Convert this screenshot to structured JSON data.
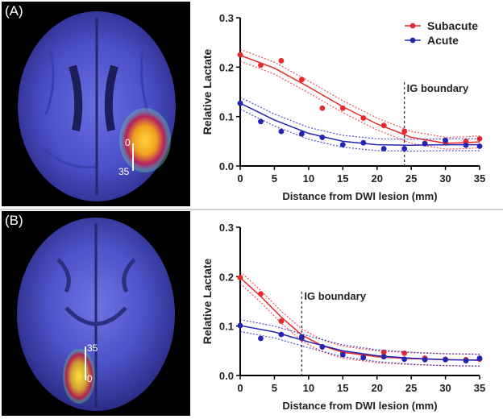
{
  "panels": [
    {
      "label": "(A)",
      "scale_top": "0",
      "scale_bottom": "35"
    },
    {
      "label": "(B)",
      "scale_top": "35",
      "scale_bottom": "0"
    }
  ],
  "colors": {
    "subacute": "#e8282a",
    "acute": "#2424b4",
    "boundary": "#333333"
  },
  "chart_data": [
    {
      "type": "scatter",
      "title": "",
      "xlabel": "Distance from DWI lesion (mm)",
      "ylabel": "Relative Lactate",
      "xlim": [
        0,
        35
      ],
      "ylim": [
        0,
        0.3
      ],
      "xticks": [
        0,
        5,
        10,
        15,
        20,
        25,
        30,
        35
      ],
      "yticks": [
        "0.0",
        "0.1",
        "0.2",
        "0.3"
      ],
      "legend": "top-right",
      "boundary": {
        "x": 24,
        "label": "IG boundary"
      },
      "series": [
        {
          "name": "Subacute",
          "x": [
            0,
            3,
            6,
            9,
            12,
            15,
            18,
            21,
            24,
            27,
            30,
            33,
            35
          ],
          "y": [
            0.225,
            0.204,
            0.213,
            0.175,
            0.117,
            0.117,
            0.097,
            0.082,
            0.07,
            0.046,
            0.047,
            0.05,
            0.055
          ],
          "fit": [
            [
              0,
              0.224
            ],
            [
              5,
              0.198
            ],
            [
              10,
              0.16
            ],
            [
              15,
              0.12
            ],
            [
              20,
              0.085
            ],
            [
              25,
              0.058
            ],
            [
              30,
              0.046
            ],
            [
              33,
              0.047
            ],
            [
              35,
              0.049
            ]
          ]
        },
        {
          "name": "Acute",
          "x": [
            0,
            3,
            6,
            9,
            12,
            15,
            18,
            21,
            24,
            27,
            30,
            33,
            35
          ],
          "y": [
            0.127,
            0.09,
            0.07,
            0.065,
            0.058,
            0.043,
            0.047,
            0.035,
            0.035,
            0.045,
            0.052,
            0.042,
            0.04
          ],
          "fit": [
            [
              0,
              0.127
            ],
            [
              5,
              0.093
            ],
            [
              10,
              0.066
            ],
            [
              15,
              0.05
            ],
            [
              20,
              0.043
            ],
            [
              25,
              0.042
            ],
            [
              30,
              0.043
            ],
            [
              35,
              0.043
            ]
          ]
        }
      ]
    },
    {
      "type": "scatter",
      "title": "",
      "xlabel": "Distance from DWI lesion (mm)",
      "ylabel": "Relative Lactate",
      "xlim": [
        0,
        35
      ],
      "ylim": [
        0,
        0.3
      ],
      "xticks": [
        0,
        5,
        10,
        15,
        20,
        25,
        30,
        35
      ],
      "yticks": [
        "0.0",
        "0.1",
        "0.2",
        "0.3"
      ],
      "legend": "none",
      "boundary": {
        "x": 9,
        "label": "IG boundary"
      },
      "series": [
        {
          "name": "Subacute",
          "x": [
            0,
            3,
            6,
            9,
            12,
            15,
            18,
            21,
            24,
            27,
            30,
            33,
            35
          ],
          "y": [
            0.198,
            0.165,
            0.11,
            0.075,
            0.058,
            0.045,
            0.038,
            0.047,
            0.045,
            0.035,
            0.033,
            0.032,
            0.033
          ],
          "fit": [
            [
              0,
              0.198
            ],
            [
              3,
              0.16
            ],
            [
              6,
              0.118
            ],
            [
              9,
              0.082
            ],
            [
              12,
              0.06
            ],
            [
              15,
              0.047
            ],
            [
              20,
              0.038
            ],
            [
              25,
              0.034
            ],
            [
              30,
              0.032
            ],
            [
              35,
              0.031
            ]
          ]
        },
        {
          "name": "Acute",
          "x": [
            0,
            3,
            6,
            9,
            12,
            15,
            18,
            21,
            24,
            27,
            30,
            33,
            35
          ],
          "y": [
            0.101,
            0.075,
            0.083,
            0.078,
            0.058,
            0.042,
            0.036,
            0.038,
            0.033,
            0.032,
            0.032,
            0.03,
            0.035
          ],
          "fit": [
            [
              0,
              0.101
            ],
            [
              5,
              0.088
            ],
            [
              10,
              0.068
            ],
            [
              15,
              0.05
            ],
            [
              20,
              0.04
            ],
            [
              25,
              0.035
            ],
            [
              30,
              0.032
            ],
            [
              35,
              0.031
            ]
          ]
        }
      ]
    }
  ]
}
